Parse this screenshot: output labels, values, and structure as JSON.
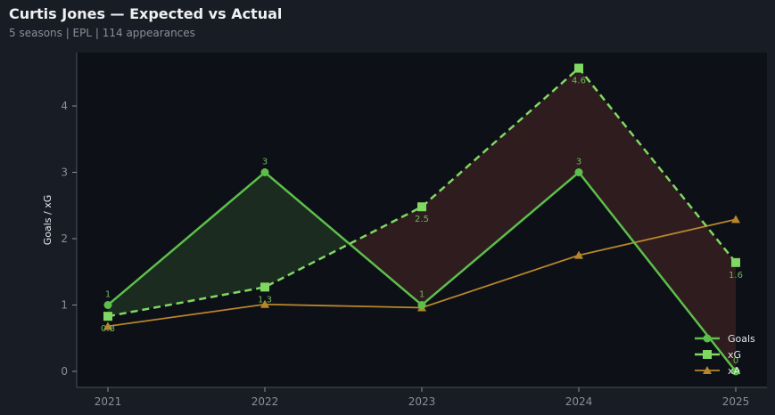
{
  "header": {
    "title": "Curtis Jones — Expected vs Actual",
    "subtitle": "5 seasons | EPL | 114 appearances"
  },
  "colors": {
    "background": "#181c24",
    "plot_bg": "#0d1017",
    "goals": "#5cbf4a",
    "xg": "#7fd862",
    "xa": "#b8862a",
    "overperform_fill": "#1b2b1f",
    "underperform_fill": "#2e1c1f"
  },
  "chart_data": {
    "type": "line",
    "title": "Curtis Jones — Expected vs Actual",
    "subtitle": "5 seasons | EPL | 114 appearances",
    "xlabel": "",
    "ylabel": "Goals / xG",
    "categories": [
      "2021",
      "2022",
      "2023",
      "2024",
      "2025"
    ],
    "yticks": [
      "0",
      "1",
      "2",
      "3",
      "4"
    ],
    "ylim": [
      -0.25,
      4.8
    ],
    "grid": false,
    "legend_position": "lower right",
    "series": [
      {
        "name": "Goals",
        "marker": "circle",
        "style": "solid",
        "values": [
          1,
          3,
          1,
          3,
          0
        ],
        "labels": [
          "1",
          "3",
          "1",
          "3",
          "0"
        ]
      },
      {
        "name": "xG",
        "marker": "square",
        "style": "dashed",
        "values": [
          0.83,
          1.27,
          2.48,
          4.57,
          1.64
        ],
        "labels": [
          "0.8",
          "1.3",
          "2.5",
          "4.6",
          "1.6"
        ]
      },
      {
        "name": "xA",
        "marker": "triangle",
        "style": "solid",
        "values": [
          0.68,
          1.01,
          0.96,
          1.75,
          2.29
        ]
      }
    ],
    "fills": [
      {
        "between": [
          "Goals",
          "xG"
        ],
        "where": "Goals > xG",
        "color": "#1b2b1f"
      },
      {
        "between": [
          "Goals",
          "xG"
        ],
        "where": "Goals < xG",
        "color": "#2e1c1f"
      }
    ]
  },
  "legend": {
    "items": [
      "Goals",
      "xG",
      "xA"
    ]
  }
}
